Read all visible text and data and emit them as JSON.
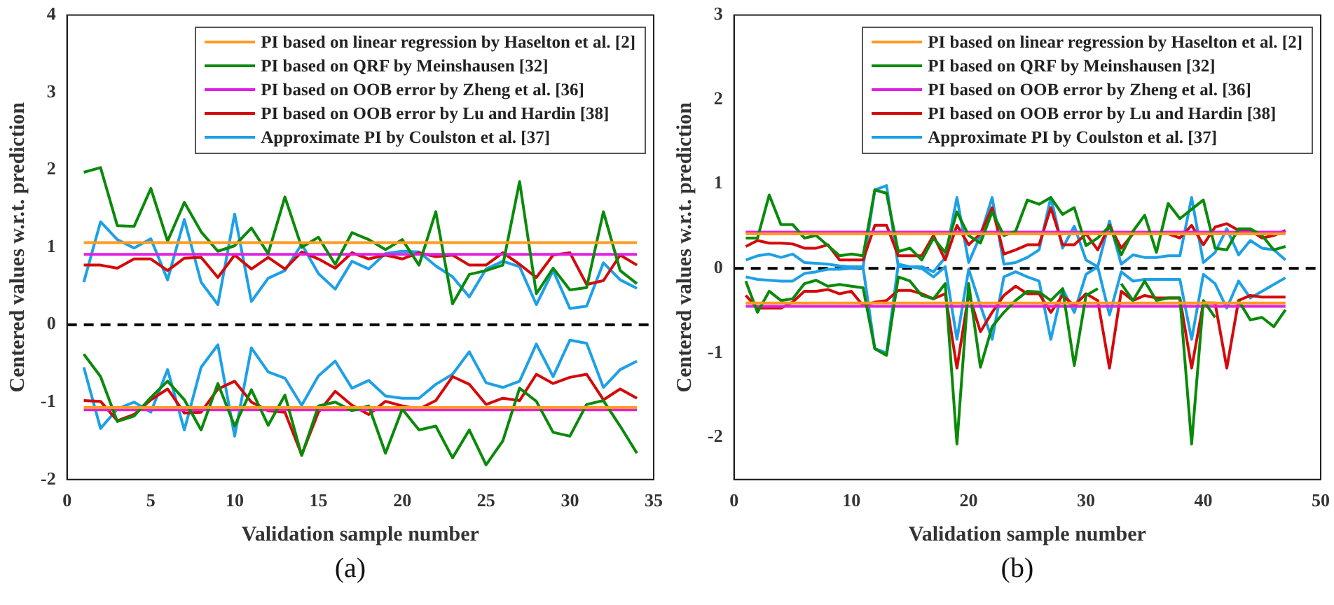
{
  "chart_data": [
    {
      "type": "line",
      "xlabel": "Validation sample number",
      "ylabel": "Centered values w.r.t. prediction",
      "annotations": [
        "(a)"
      ],
      "legend": "top right",
      "marker": "none",
      "line_style": "solid",
      "x": [
        1,
        2,
        3,
        4,
        5,
        6,
        7,
        8,
        9,
        10,
        11,
        12,
        13,
        14,
        15,
        16,
        17,
        18,
        19,
        20,
        21,
        22,
        23,
        24,
        25,
        26,
        27,
        28,
        29,
        30,
        31,
        32,
        33,
        34
      ],
      "xlim": [
        0,
        35
      ],
      "xticks": [
        0,
        5,
        10,
        15,
        20,
        25,
        30,
        35
      ],
      "ylim": [
        -2,
        4
      ],
      "yticks": [
        -2,
        -1,
        0,
        1,
        2,
        3,
        4
      ],
      "ref_lines": [
        {
          "axis": "y",
          "value": 0,
          "color": "#000000",
          "line_style": "dashed"
        }
      ],
      "series": [
        {
          "name": "PI based on linear regression by Haselton et al. [2]",
          "color": "#ff9b21",
          "values": [
            1.06,
            1.06,
            1.06,
            1.06,
            1.06,
            1.06,
            1.06,
            1.06,
            1.06,
            1.06,
            1.06,
            1.06,
            1.06,
            1.06,
            1.06,
            1.06,
            1.06,
            1.06,
            1.06,
            1.06,
            1.06,
            1.06,
            1.06,
            1.06,
            1.06,
            1.06,
            1.06,
            1.06,
            1.06,
            1.06,
            1.06,
            1.06,
            1.06,
            1.06
          ]
        },
        {
          "name": "PI based on QRF by Meinshausen [32]",
          "color": "#0a8a0a",
          "values": [
            1.97,
            2.03,
            1.28,
            1.27,
            1.76,
            1.08,
            1.58,
            1.2,
            0.95,
            1.02,
            1.25,
            0.92,
            1.65,
            1.0,
            1.13,
            0.78,
            1.19,
            1.1,
            0.97,
            1.1,
            0.77,
            1.46,
            0.27,
            0.65,
            0.7,
            0.77,
            1.85,
            0.4,
            0.73,
            0.45,
            0.48,
            1.46,
            0.7,
            0.53
          ]
        },
        {
          "name": "PI based on OOB error by Zheng et al. [36]",
          "color": "#e020e0",
          "values": [
            0.91,
            0.91,
            0.91,
            0.91,
            0.91,
            0.91,
            0.91,
            0.91,
            0.91,
            0.91,
            0.91,
            0.91,
            0.91,
            0.91,
            0.91,
            0.91,
            0.91,
            0.91,
            0.91,
            0.91,
            0.91,
            0.91,
            0.91,
            0.91,
            0.91,
            0.91,
            0.91,
            0.91,
            0.91,
            0.91,
            0.91,
            0.91,
            0.91,
            0.91
          ]
        },
        {
          "name": "PI based on OOB error by Lu and Hardin [38]",
          "color": "#d40a0a",
          "values": [
            0.77,
            0.77,
            0.73,
            0.85,
            0.85,
            0.7,
            0.86,
            0.87,
            0.61,
            0.9,
            0.72,
            0.87,
            0.72,
            0.94,
            0.85,
            0.73,
            0.93,
            0.85,
            0.9,
            0.85,
            0.93,
            0.88,
            0.9,
            0.77,
            0.77,
            0.93,
            0.78,
            0.61,
            0.9,
            0.93,
            0.52,
            0.57,
            0.9,
            0.77
          ]
        },
        {
          "name": "Approximate PI by Coulston et al. [37]",
          "color": "#1ea0e6",
          "values": [
            0.55,
            1.33,
            1.1,
            0.99,
            1.11,
            0.58,
            1.36,
            0.55,
            0.26,
            1.43,
            0.3,
            0.6,
            0.7,
            1.04,
            0.66,
            0.46,
            0.82,
            0.72,
            0.92,
            0.95,
            0.94,
            0.76,
            0.62,
            0.36,
            0.72,
            0.82,
            0.75,
            0.26,
            0.7,
            0.21,
            0.24,
            0.8,
            0.58,
            0.47
          ]
        },
        {
          "color": "#ff9b21",
          "values": [
            -1.07,
            -1.07,
            -1.07,
            -1.07,
            -1.07,
            -1.07,
            -1.07,
            -1.07,
            -1.07,
            -1.07,
            -1.07,
            -1.07,
            -1.07,
            -1.07,
            -1.07,
            -1.07,
            -1.07,
            -1.07,
            -1.07,
            -1.07,
            -1.07,
            -1.07,
            -1.07,
            -1.07,
            -1.07,
            -1.07,
            -1.07,
            -1.07,
            -1.07,
            -1.07,
            -1.07,
            -1.07,
            -1.07,
            -1.07
          ]
        },
        {
          "color": "#0a8a0a",
          "values": [
            -0.38,
            -0.67,
            -1.25,
            -1.18,
            -0.94,
            -0.73,
            -0.97,
            -1.36,
            -0.76,
            -1.31,
            -0.84,
            -1.3,
            -0.91,
            -1.69,
            -1.05,
            -1.0,
            -1.11,
            -1.05,
            -1.66,
            -1.09,
            -1.36,
            -1.31,
            -1.72,
            -1.36,
            -1.81,
            -1.5,
            -0.82,
            -0.99,
            -1.39,
            -1.44,
            -1.03,
            -0.98,
            -1.31,
            -1.66
          ]
        },
        {
          "color": "#e020e0",
          "values": [
            -1.1,
            -1.1,
            -1.1,
            -1.1,
            -1.1,
            -1.1,
            -1.1,
            -1.1,
            -1.1,
            -1.1,
            -1.1,
            -1.1,
            -1.1,
            -1.1,
            -1.1,
            -1.1,
            -1.1,
            -1.1,
            -1.1,
            -1.1,
            -1.1,
            -1.1,
            -1.1,
            -1.1,
            -1.1,
            -1.1,
            -1.1,
            -1.1,
            -1.1,
            -1.1,
            -1.1,
            -1.1,
            -1.1,
            -1.1
          ]
        },
        {
          "color": "#d40a0a",
          "values": [
            -0.98,
            -0.99,
            -1.24,
            -1.16,
            -0.97,
            -0.83,
            -1.14,
            -1.13,
            -0.83,
            -0.73,
            -1.0,
            -1.11,
            -1.13,
            -1.68,
            -1.13,
            -0.86,
            -1.04,
            -1.16,
            -0.99,
            -1.05,
            -1.09,
            -0.98,
            -0.67,
            -0.77,
            -1.03,
            -0.95,
            -0.98,
            -0.64,
            -0.76,
            -0.68,
            -0.64,
            -0.97,
            -0.83,
            -0.95
          ]
        },
        {
          "color": "#1ea0e6",
          "values": [
            -0.55,
            -1.34,
            -1.09,
            -1.0,
            -1.13,
            -0.58,
            -1.36,
            -0.55,
            -0.26,
            -1.44,
            -0.3,
            -0.61,
            -0.69,
            -1.04,
            -0.66,
            -0.47,
            -0.82,
            -0.72,
            -0.92,
            -0.95,
            -0.95,
            -0.77,
            -0.64,
            -0.35,
            -0.75,
            -0.81,
            -0.73,
            -0.25,
            -0.67,
            -0.2,
            -0.24,
            -0.81,
            -0.58,
            -0.47
          ]
        }
      ]
    },
    {
      "type": "line",
      "xlabel": "Validation sample number",
      "ylabel": "Centered values w.r.t. prediction",
      "annotations": [
        "(b)"
      ],
      "legend": "top right",
      "marker": "none",
      "line_style": "solid",
      "x": [
        1,
        2,
        3,
        4,
        5,
        6,
        7,
        8,
        9,
        10,
        11,
        12,
        13,
        14,
        15,
        16,
        17,
        18,
        19,
        20,
        21,
        22,
        23,
        24,
        25,
        26,
        27,
        28,
        29,
        30,
        31,
        32,
        33,
        34,
        35,
        36,
        37,
        38,
        39,
        40,
        41,
        42,
        43,
        44,
        45,
        46,
        47
      ],
      "xlim": [
        0,
        50
      ],
      "xticks": [
        0,
        10,
        20,
        30,
        40,
        50
      ],
      "ylim": [
        -2.5,
        3
      ],
      "yticks": [
        -2,
        -1,
        0,
        1,
        2,
        3
      ],
      "ref_lines": [
        {
          "axis": "y",
          "value": 0,
          "color": "#000000",
          "line_style": "dashed"
        }
      ],
      "series": [
        {
          "name": "PI based on linear regression by Haselton et al. [2]",
          "color": "#ff9b21",
          "values": [
            0.41,
            0.41,
            0.41,
            0.41,
            0.41,
            0.41,
            0.41,
            0.41,
            0.41,
            0.41,
            0.41,
            0.41,
            0.41,
            0.41,
            0.41,
            0.41,
            0.41,
            0.41,
            0.41,
            0.41,
            0.41,
            0.41,
            0.41,
            0.41,
            0.41,
            0.41,
            0.41,
            0.41,
            0.41,
            0.41,
            0.41,
            0.41,
            0.41,
            0.41,
            0.41,
            0.41,
            0.41,
            0.41,
            0.41,
            0.41,
            0.41,
            0.41,
            0.41,
            0.41,
            0.41,
            0.41,
            0.41
          ]
        },
        {
          "name": "PI based on QRF by Meinshausen [32]",
          "color": "#0a8a0a",
          "values": [
            0.36,
            0.36,
            0.87,
            0.52,
            0.52,
            0.36,
            0.39,
            0.27,
            0.15,
            0.17,
            0.15,
            0.93,
            0.89,
            0.2,
            0.24,
            0.1,
            0.36,
            0.19,
            0.67,
            0.39,
            0.3,
            0.67,
            0.39,
            0.44,
            0.81,
            0.76,
            0.84,
            0.64,
            0.72,
            0.27,
            0.36,
            0.5,
            0.16,
            0.44,
            0.63,
            0.19,
            0.77,
            0.59,
            0.7,
            0.81,
            0.24,
            0.22,
            0.47,
            0.47,
            0.39,
            0.22,
            0.26
          ]
        },
        {
          "name": "PI based on OOB error by Zheng et al. [36]",
          "color": "#e020e0",
          "values": [
            0.43,
            0.43,
            0.43,
            0.43,
            0.43,
            0.43,
            0.43,
            0.43,
            0.43,
            0.43,
            0.43,
            0.43,
            0.43,
            0.43,
            0.43,
            0.43,
            0.43,
            0.43,
            0.43,
            0.43,
            0.43,
            0.43,
            0.43,
            0.43,
            0.43,
            0.43,
            0.43,
            0.43,
            0.43,
            0.43,
            0.43,
            0.43,
            0.43,
            0.43,
            0.43,
            0.43,
            0.43,
            0.43,
            0.43,
            0.43,
            0.43,
            0.43,
            0.43,
            0.43,
            0.43,
            0.43,
            0.43
          ]
        },
        {
          "name": "PI based on OOB error by Lu and Hardin [38]",
          "color": "#d40a0a",
          "values": [
            0.26,
            0.33,
            0.3,
            0.3,
            0.29,
            0.24,
            0.24,
            0.28,
            0.1,
            0.1,
            0.1,
            0.51,
            0.51,
            0.15,
            0.15,
            0.15,
            0.39,
            0.1,
            0.51,
            0.28,
            0.41,
            0.72,
            0.17,
            0.22,
            0.28,
            0.28,
            0.72,
            0.28,
            0.28,
            0.41,
            0.22,
            0.51,
            0.24,
            0.41,
            0.41,
            0.41,
            0.41,
            0.36,
            0.51,
            0.28,
            0.49,
            0.53,
            0.45,
            0.45,
            0.36,
            0.39,
            0.45
          ]
        },
        {
          "name": "Approximate PI by Coulston et al. [37]",
          "color": "#1ea0e6",
          "values": [
            0.1,
            0.15,
            0.17,
            0.13,
            0.17,
            0.07,
            0.06,
            0.05,
            0.03,
            0.02,
            0.02,
            0.93,
            0.98,
            0.02,
            0.02,
            0.02,
            -0.04,
            0.13,
            0.84,
            0.07,
            0.39,
            0.84,
            0.05,
            0.07,
            0.13,
            0.22,
            0.84,
            0.24,
            0.5,
            0.1,
            0.02,
            0.56,
            0.05,
            0.16,
            0.13,
            0.13,
            0.15,
            0.15,
            0.84,
            0.07,
            0.19,
            0.47,
            0.16,
            0.33,
            0.24,
            0.22,
            0.1
          ]
        },
        {
          "color": "#ff9b21",
          "values": [
            -0.41,
            -0.41,
            -0.41,
            -0.41,
            -0.41,
            -0.41,
            -0.41,
            -0.41,
            -0.41,
            -0.41,
            -0.41,
            -0.41,
            -0.41,
            -0.41,
            -0.41,
            -0.41,
            -0.41,
            -0.41,
            -0.41,
            -0.41,
            -0.41,
            -0.41,
            -0.41,
            -0.41,
            -0.41,
            -0.41,
            -0.41,
            -0.41,
            -0.41,
            -0.41,
            -0.41,
            -0.41,
            -0.41,
            -0.41,
            -0.41,
            -0.41,
            -0.41,
            -0.41,
            -0.41,
            -0.41,
            -0.41,
            -0.41,
            -0.41,
            -0.41,
            -0.41,
            -0.41,
            -0.41
          ]
        },
        {
          "color": "#0a8a0a",
          "values": [
            -0.15,
            -0.52,
            -0.27,
            -0.38,
            -0.36,
            -0.18,
            -0.14,
            -0.21,
            -0.19,
            -0.21,
            -0.23,
            -0.95,
            -1.03,
            -0.1,
            -0.15,
            -0.32,
            -0.36,
            -0.18,
            -2.08,
            -0.18,
            -1.17,
            -0.69,
            -0.52,
            -0.38,
            -0.27,
            -0.28,
            -0.38,
            -0.24,
            -1.15,
            -0.32,
            -0.24,
            null,
            -0.18,
            -0.38,
            -0.15,
            -0.38,
            -0.35,
            -0.35,
            -2.08,
            -0.38,
            -0.58,
            null,
            -0.38,
            -0.61,
            -0.58,
            -0.69,
            -0.49
          ]
        },
        {
          "color": "#e020e0",
          "values": [
            -0.45,
            -0.45,
            -0.45,
            -0.45,
            -0.45,
            -0.45,
            -0.45,
            -0.45,
            -0.45,
            -0.45,
            -0.45,
            -0.45,
            -0.45,
            -0.45,
            -0.45,
            -0.45,
            -0.45,
            -0.45,
            -0.45,
            -0.45,
            -0.45,
            -0.45,
            -0.45,
            -0.45,
            -0.45,
            -0.45,
            -0.45,
            -0.45,
            -0.45,
            -0.45,
            -0.45,
            -0.45,
            -0.45,
            -0.45,
            -0.45,
            -0.45,
            -0.45,
            -0.45,
            -0.45,
            -0.45,
            -0.45,
            -0.45,
            -0.45,
            -0.45,
            -0.45,
            -0.45,
            -0.45
          ]
        },
        {
          "color": "#d40a0a",
          "values": [
            -0.32,
            -0.47,
            -0.47,
            -0.47,
            -0.4,
            -0.27,
            -0.27,
            -0.25,
            -0.3,
            -0.27,
            -0.44,
            -0.4,
            -0.38,
            -0.26,
            -0.26,
            -0.3,
            -0.36,
            -0.3,
            -1.18,
            -0.3,
            -0.75,
            -0.52,
            -0.32,
            -0.21,
            -0.3,
            -0.3,
            -0.52,
            -0.32,
            -0.44,
            -0.3,
            -0.38,
            -1.18,
            -0.27,
            -0.38,
            -0.32,
            -0.35,
            -0.35,
            -0.35,
            -1.18,
            -0.41,
            -0.41,
            -1.18,
            -0.38,
            -0.32,
            -0.34,
            -0.34,
            -0.34
          ]
        },
        {
          "color": "#1ea0e6",
          "values": [
            -0.1,
            -0.13,
            -0.14,
            -0.15,
            -0.15,
            -0.06,
            -0.04,
            -0.01,
            -0.01,
            0,
            0.01,
            -0.95,
            -1.0,
            0.05,
            0.02,
            0,
            -0.1,
            0.02,
            -0.84,
            -0.01,
            -0.44,
            -0.84,
            -0.1,
            -0.04,
            -0.1,
            -0.15,
            -0.84,
            -0.24,
            -0.52,
            -0.07,
            0.02,
            -0.55,
            -0.04,
            -0.15,
            -0.13,
            -0.13,
            -0.13,
            -0.13,
            -0.84,
            -0.07,
            -0.18,
            -0.47,
            -0.15,
            -0.35,
            -0.27,
            -0.19,
            -0.11
          ]
        }
      ]
    }
  ]
}
